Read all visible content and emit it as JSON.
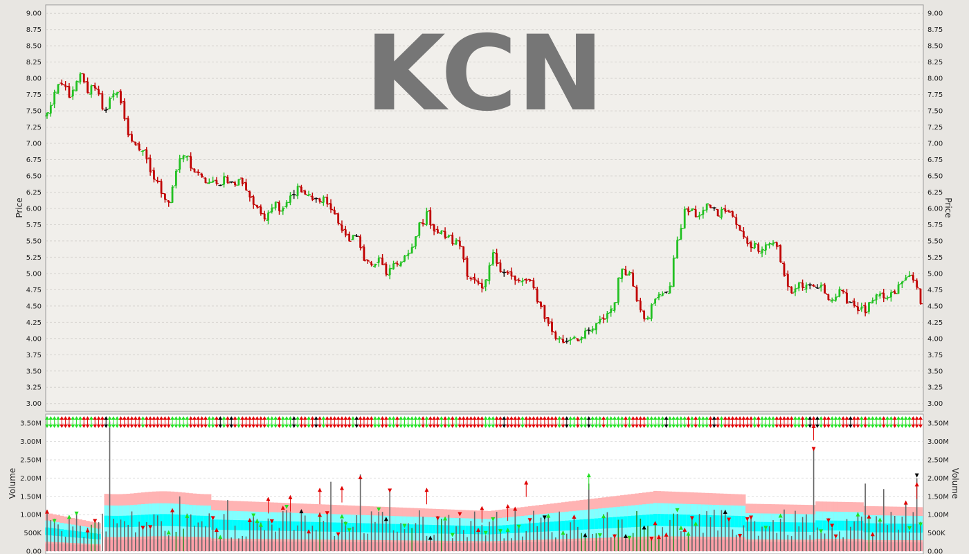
{
  "ticker": "KCN",
  "chart_data": [
    {
      "type": "ohlc",
      "ylabel": "Price",
      "ylim": [
        2.88,
        9.13
      ],
      "yticks": [
        "3.00",
        "3.25",
        "3.50",
        "3.75",
        "4.00",
        "4.25",
        "4.50",
        "4.75",
        "5.00",
        "5.25",
        "5.50",
        "5.75",
        "6.00",
        "6.25",
        "6.50",
        "6.75",
        "7.00",
        "7.25",
        "7.50",
        "7.75",
        "8.00",
        "8.25",
        "8.50",
        "8.75",
        "9.00"
      ],
      "grid": true,
      "colors": {
        "up": "#22c022",
        "down": "#c00000",
        "flat": "#111111"
      },
      "path": [
        7.45,
        7.8,
        7.9,
        7.7,
        8.05,
        7.8,
        7.9,
        7.5,
        7.7,
        7.75,
        7.1,
        7.0,
        6.8,
        6.5,
        6.3,
        6.1,
        6.6,
        6.85,
        6.6,
        6.45,
        6.4,
        6.35,
        6.5,
        6.35,
        6.45,
        6.2,
        5.95,
        5.9,
        6.1,
        6.0,
        6.2,
        6.3,
        6.2,
        6.1,
        6.2,
        6.0,
        5.8,
        5.5,
        5.6,
        5.3,
        5.1,
        5.2,
        5.0,
        5.1,
        5.25,
        5.3,
        5.75,
        5.9,
        5.65,
        5.6,
        5.5,
        5.45,
        5.0,
        4.85,
        4.7,
        5.3,
        5.1,
        5.0,
        4.85,
        4.9,
        4.8,
        4.5,
        4.2,
        4.0,
        3.95,
        4.05,
        4.0,
        4.1,
        4.2,
        4.35,
        4.5,
        5.1,
        5.0,
        4.6,
        4.3,
        4.55,
        4.7,
        4.8,
        5.6,
        6.0,
        5.9,
        5.95,
        6.05,
        5.9,
        6.0,
        5.8,
        5.55,
        5.45,
        5.4,
        5.45,
        5.5,
        5.0,
        4.7,
        4.85,
        4.75,
        4.8,
        4.75,
        4.6,
        4.7,
        4.6,
        4.5,
        4.4,
        4.55,
        4.65,
        4.6,
        4.75,
        4.9,
        5.0,
        4.5
      ]
    },
    {
      "type": "bar",
      "ylabel": "Volume",
      "ylim": [
        0,
        3.75
      ],
      "yticks": [
        "0.00",
        "500K",
        "1.00M",
        "1.50M",
        "2.00M",
        "2.50M",
        "3.00M",
        "3.50M"
      ],
      "grid": true,
      "units": "millions",
      "spikes": [
        [
          4,
          0.55
        ],
        [
          8,
          1.05
        ],
        [
          17,
          3.55
        ],
        [
          36,
          1.5
        ],
        [
          49,
          1.4
        ],
        [
          77,
          1.9
        ],
        [
          85,
          2.1
        ],
        [
          93,
          1.7
        ],
        [
          147,
          1.85
        ],
        [
          208,
          2.85
        ],
        [
          222,
          1.85
        ],
        [
          227,
          1.7
        ],
        [
          233,
          1.3
        ],
        [
          236,
          2.0
        ]
      ],
      "bands": {
        "pink_top": "#ffb3b3",
        "cyan_outer": "#80ffff",
        "cyan_inner": "#00ffff",
        "base": "#ff9fa8"
      },
      "signal_colors": {
        "up": "#22e022",
        "down": "#e00000",
        "neutral": "#000000"
      }
    }
  ]
}
